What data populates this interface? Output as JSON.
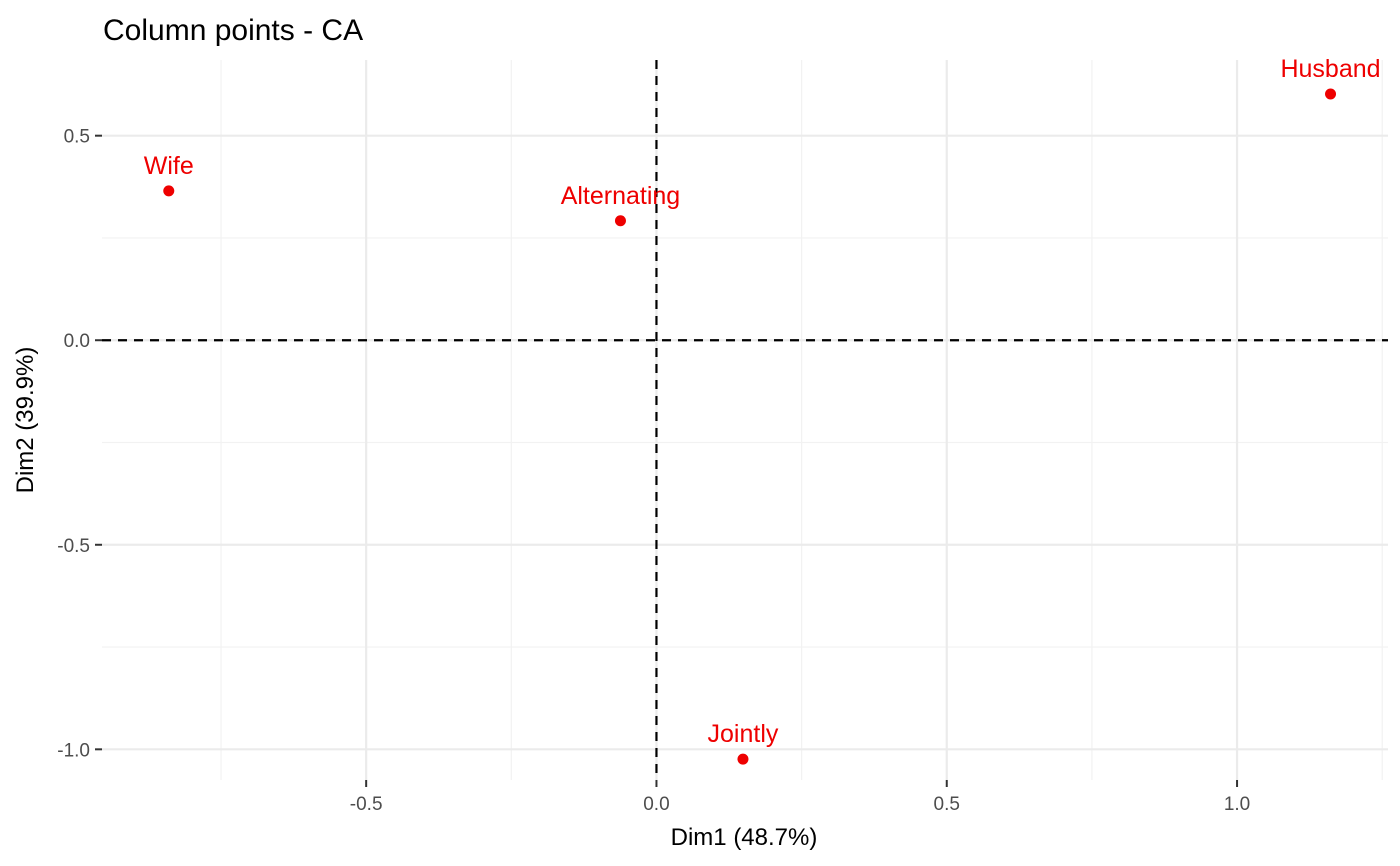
{
  "chart_data": {
    "type": "scatter",
    "title": "Column points - CA",
    "xlabel": "Dim1 (48.7%)",
    "ylabel": "Dim2 (39.9%)",
    "xlim": [
      -0.955,
      1.26
    ],
    "ylim": [
      -1.075,
      0.685
    ],
    "x_ticks": [
      -0.5,
      0.0,
      0.5,
      1.0
    ],
    "x_tick_labels": [
      "-0.5",
      "0.0",
      "0.5",
      "1.0"
    ],
    "y_ticks": [
      -1.0,
      -0.5,
      0.0,
      0.5
    ],
    "y_tick_labels": [
      "-1.0",
      "-0.5",
      "0.0",
      "0.5"
    ],
    "grid": true,
    "reference_lines": {
      "x": 0,
      "y": 0,
      "style": "dashed"
    },
    "series": [
      {
        "color": "#ee0000",
        "points": [
          {
            "label": "Wife",
            "x": -0.84,
            "y": 0.365
          },
          {
            "label": "Alternating",
            "x": -0.062,
            "y": 0.292
          },
          {
            "label": "Jointly",
            "x": 0.149,
            "y": -1.024
          },
          {
            "label": "Husband",
            "x": 1.161,
            "y": 0.602
          }
        ]
      }
    ]
  }
}
